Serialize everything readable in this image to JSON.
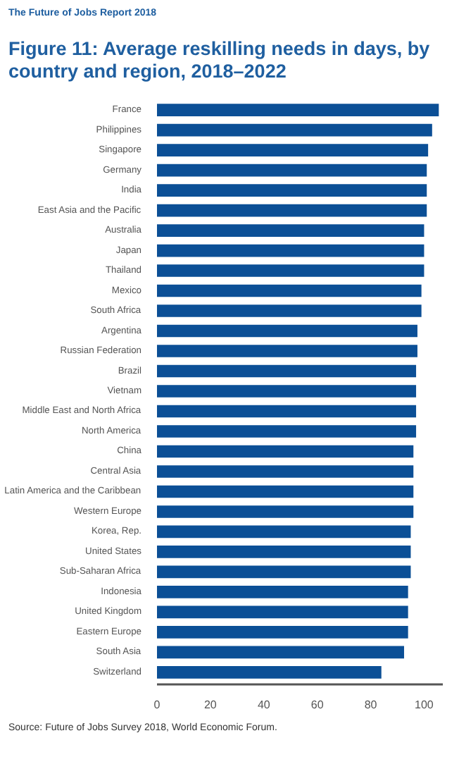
{
  "chart_data": {
    "type": "bar",
    "orientation": "horizontal",
    "title": "Figure 11: Average reskilling needs in days, by country and region, 2018–2022",
    "annotations": [
      "The Future of Jobs Report 2018",
      "Source: Future of Jobs Survey 2018, World Economic Forum."
    ],
    "categories": [
      "France",
      "Philippines",
      "Singapore",
      "Germany",
      "India",
      "East Asia and the Pacific",
      "Australia",
      "Japan",
      "Thailand",
      "Mexico",
      "South Africa",
      "Argentina",
      "Russian Federation",
      "Brazil",
      "Vietnam",
      "Middle East and North Africa",
      "North America",
      "China",
      "Central Asia",
      "Latin America and the Caribbean",
      "Western Europe",
      "Korea, Rep.",
      "United States",
      "Sub-Saharan Africa",
      "Indonesia",
      "United Kingdom",
      "Eastern Europe",
      "South Asia",
      "Switzerland"
    ],
    "values": [
      105.5,
      103,
      101.5,
      101,
      101,
      101,
      100,
      100,
      100,
      99,
      99,
      97.5,
      97.5,
      97,
      97,
      97,
      97,
      96,
      96,
      96,
      96,
      95,
      95,
      95,
      94,
      94,
      94,
      92.5,
      84
    ],
    "color": "#0b4f96",
    "xlim": [
      0,
      107
    ],
    "xticks": [
      0,
      20,
      40,
      60,
      80,
      100
    ],
    "grid": false
  }
}
